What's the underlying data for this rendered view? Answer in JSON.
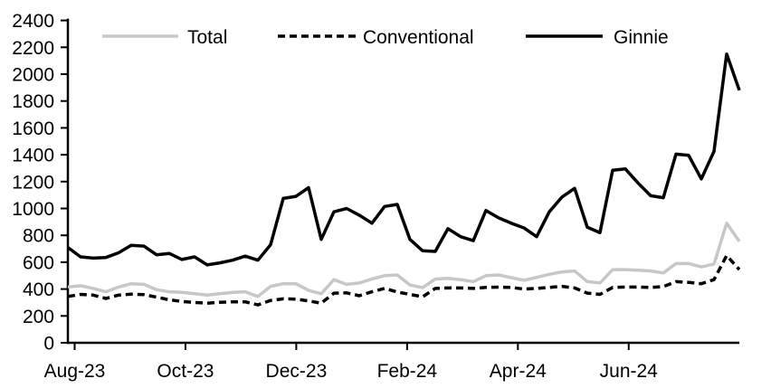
{
  "chart_data": {
    "type": "line",
    "title": "",
    "grid": "off",
    "legend_position": "top",
    "x": {
      "tick_labels": [
        "Aug-23",
        "Oct-23",
        "Dec-23",
        "Feb-24",
        "Apr-24",
        "Jun-24"
      ],
      "frequency": "weekly",
      "range_note": "Aug-2023 through mid-Aug-2024"
    },
    "y": {
      "min": 0,
      "max": 2400,
      "step": 200
    },
    "series": [
      {
        "name": "Total",
        "color": "#c7c7c7",
        "dash": "",
        "width": 3.5,
        "values": [
          415,
          425,
          405,
          380,
          415,
          440,
          435,
          395,
          380,
          375,
          365,
          355,
          365,
          375,
          380,
          345,
          420,
          440,
          440,
          390,
          365,
          470,
          435,
          445,
          475,
          500,
          505,
          430,
          410,
          475,
          480,
          470,
          455,
          500,
          505,
          485,
          465,
          487,
          510,
          528,
          535,
          455,
          445,
          545,
          545,
          540,
          535,
          520,
          590,
          590,
          565,
          585,
          890,
          755
        ]
      },
      {
        "name": "Conventional",
        "color": "#000000",
        "dash": "8 5",
        "width": 3.5,
        "values": [
          345,
          360,
          355,
          330,
          355,
          362,
          358,
          340,
          320,
          308,
          300,
          295,
          302,
          305,
          305,
          282,
          315,
          327,
          325,
          312,
          295,
          370,
          372,
          350,
          380,
          405,
          378,
          360,
          342,
          405,
          408,
          408,
          405,
          412,
          414,
          412,
          400,
          405,
          412,
          420,
          408,
          370,
          360,
          412,
          415,
          415,
          412,
          418,
          455,
          450,
          440,
          470,
          650,
          545
        ]
      },
      {
        "name": "Ginnie",
        "color": "#000000",
        "dash": "",
        "width": 3.5,
        "values": [
          710,
          640,
          630,
          635,
          670,
          725,
          720,
          655,
          665,
          620,
          640,
          580,
          595,
          615,
          645,
          615,
          730,
          1075,
          1090,
          1155,
          770,
          975,
          1000,
          950,
          890,
          1015,
          1030,
          770,
          685,
          680,
          850,
          790,
          760,
          985,
          930,
          890,
          855,
          790,
          975,
          1085,
          1150,
          860,
          820,
          1285,
          1295,
          1190,
          1095,
          1080,
          1405,
          1395,
          1220,
          1425,
          2150,
          1880
        ]
      }
    ]
  }
}
